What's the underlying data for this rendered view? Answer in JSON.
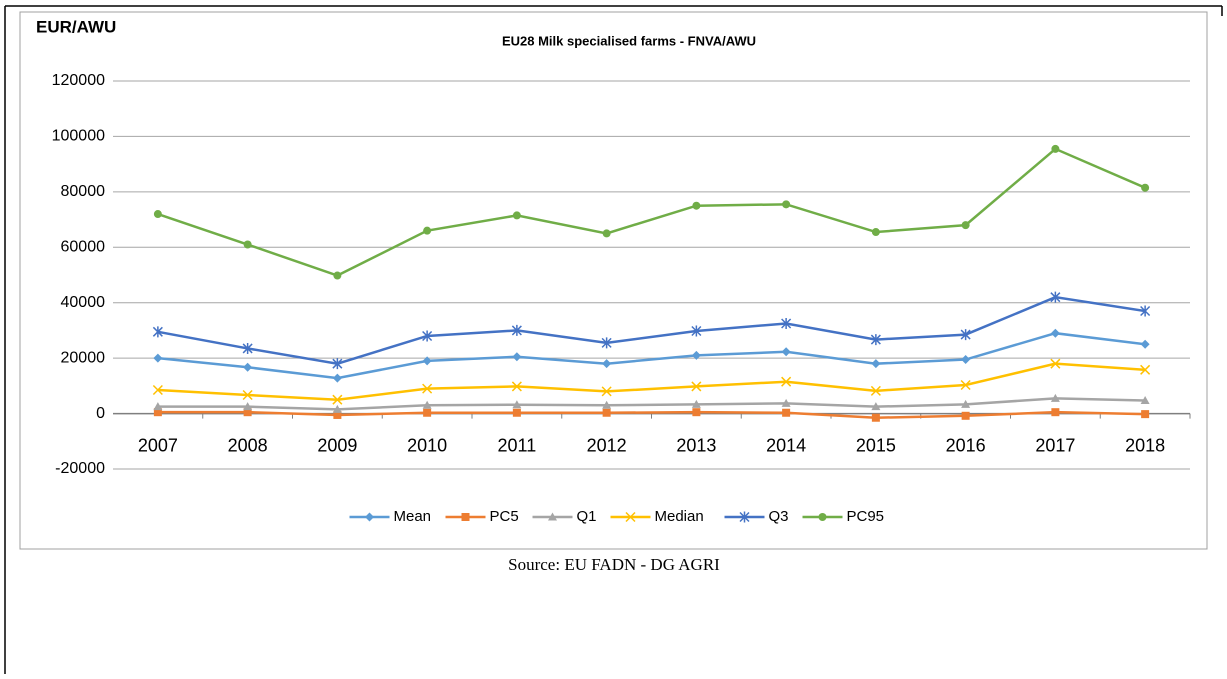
{
  "chart_data": {
    "type": "line",
    "title": "EU28 Milk specialised farms - FNVA/AWU",
    "y_label": "EUR/AWU",
    "source": "Source: EU FADN - DG AGRI",
    "categories": [
      "2007",
      "2008",
      "2009",
      "2010",
      "2011",
      "2012",
      "2013",
      "2014",
      "2015",
      "2016",
      "2017",
      "2018"
    ],
    "series": [
      {
        "name": "Mean",
        "color": "#5b9bd5",
        "marker": "diamond",
        "values": [
          20000,
          16700,
          12800,
          19000,
          20500,
          18000,
          21000,
          22300,
          18000,
          19500,
          29000,
          25000
        ]
      },
      {
        "name": "PC5",
        "color": "#ed7d31",
        "marker": "square",
        "values": [
          500,
          500,
          -500,
          300,
          300,
          300,
          500,
          300,
          -1500,
          -800,
          500,
          -200
        ]
      },
      {
        "name": "Q1",
        "color": "#a5a5a5",
        "marker": "triangle",
        "values": [
          2500,
          2500,
          1500,
          3000,
          3200,
          3000,
          3300,
          3700,
          2500,
          3300,
          5500,
          4700
        ]
      },
      {
        "name": "Median",
        "color": "#ffc000",
        "marker": "x",
        "values": [
          8500,
          6700,
          5000,
          9000,
          9800,
          8000,
          9800,
          11500,
          8200,
          10300,
          18000,
          15800
        ]
      },
      {
        "name": "Q3",
        "color": "#4472c4",
        "marker": "asterisk",
        "values": [
          29500,
          23500,
          18000,
          28000,
          30000,
          25500,
          29800,
          32500,
          26700,
          28500,
          42000,
          37000
        ]
      },
      {
        "name": "PC95",
        "color": "#70ad47",
        "marker": "circle",
        "values": [
          72000,
          61000,
          49800,
          66000,
          71500,
          65000,
          75000,
          75500,
          65500,
          68000,
          95500,
          81500
        ]
      }
    ],
    "ylim": [
      -20000,
      120000
    ],
    "yticks": [
      -20000,
      0,
      20000,
      40000,
      60000,
      80000,
      100000,
      120000
    ],
    "grid": true,
    "legend": "bottom"
  }
}
